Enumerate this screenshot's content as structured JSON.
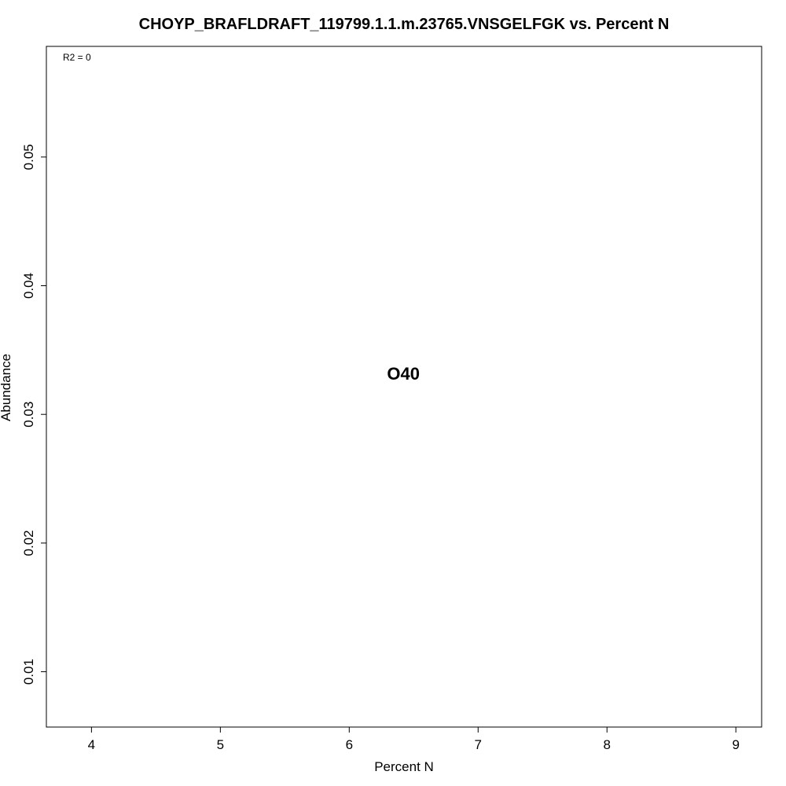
{
  "chart_data": {
    "type": "scatter",
    "title": "CHOYP_BRAFLDRAFT_119799.1.1.m.23765.VNSGELFGK vs. Percent N",
    "xlabel": "Percent N",
    "ylabel": "Abundance",
    "xlim": [
      3.65,
      9.2
    ],
    "ylim": [
      0.0057,
      0.0586
    ],
    "xticks": [
      4,
      5,
      6,
      7,
      8,
      9
    ],
    "yticks": [
      0.01,
      0.02,
      0.03,
      0.04,
      0.05
    ],
    "annotation": "R2 = 0",
    "points": [
      {
        "label": "O40",
        "x": 6.42,
        "y": 0.0332
      }
    ],
    "grid": false
  }
}
